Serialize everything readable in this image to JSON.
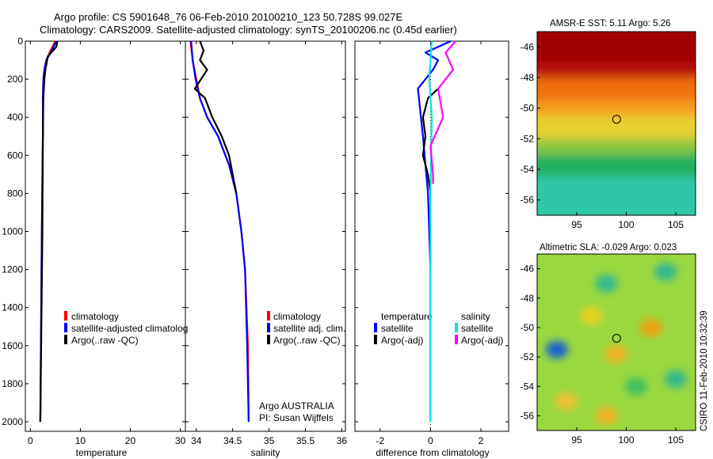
{
  "header": {
    "line1": "Argo profile: CS 5901648_76 06-Feb-2010 20100210_123 50.728S 99.027E",
    "line2": "Climatology: CARS2009. Satellite-adjusted climatology: synTS_20100206.nc (0.45d earlier)"
  },
  "side_label": "CSIRO 11-Feb-2010 10:32:39",
  "colors": {
    "climatology": "#ff0000",
    "satellite": "#0000ff",
    "argo": "#000000",
    "sal_satellite": "#00e5e5",
    "sal_argo": "#ff00ff"
  },
  "chart_data": [
    {
      "type": "line",
      "name": "temperature-profile",
      "xlabel": "temperature",
      "ylabel": "",
      "xlim": [
        -1,
        31
      ],
      "ylim": [
        2050,
        0
      ],
      "xticks": [
        0,
        10,
        20,
        30
      ],
      "yticks": [
        0,
        200,
        400,
        600,
        800,
        1000,
        1200,
        1400,
        1600,
        1800,
        2000
      ],
      "legend": [
        "climatology",
        "satellite-adjusted climatolog",
        "Argo(..raw -QC)"
      ],
      "series": [
        {
          "name": "climatology",
          "color_key": "climatology",
          "x": [
            5.0,
            4.0,
            3.2,
            2.8,
            2.6,
            2.5,
            2.5,
            2.3,
            2.0
          ],
          "y": [
            0,
            50,
            100,
            150,
            200,
            300,
            500,
            1000,
            2000
          ]
        },
        {
          "name": "satellite-adjusted climatology",
          "color_key": "satellite",
          "x": [
            5.2,
            4.3,
            3.2,
            2.8,
            2.6,
            2.5,
            2.5,
            2.3,
            2.0
          ],
          "y": [
            0,
            50,
            100,
            150,
            200,
            300,
            500,
            1000,
            2000
          ]
        },
        {
          "name": "Argo(..raw -QC)",
          "color_key": "argo",
          "x": [
            5.4,
            5.2,
            3.5,
            3.0,
            2.8,
            2.6,
            2.5,
            2.4,
            2.0
          ],
          "y": [
            0,
            30,
            80,
            150,
            200,
            300,
            500,
            1000,
            2000
          ]
        }
      ]
    },
    {
      "type": "line",
      "name": "salinity-profile",
      "xlabel": "salinity",
      "ylabel": "",
      "xlim": [
        33.85,
        36.05
      ],
      "ylim": [
        2050,
        0
      ],
      "xticks": [
        34,
        34.5,
        35,
        35.5,
        36
      ],
      "legend": [
        "climatology",
        "satellite adj. clim.",
        "Argo(..raw -QC)"
      ],
      "annotations": [
        "Argo AUSTRALIA",
        "PI: Susan Wijffels"
      ],
      "series": [
        {
          "name": "climatology",
          "color_key": "climatology",
          "x": [
            33.92,
            33.95,
            34.0,
            34.05,
            34.15,
            34.3,
            34.45,
            34.55,
            34.62,
            34.67,
            34.71,
            34.72
          ],
          "y": [
            0,
            100,
            200,
            300,
            400,
            500,
            650,
            800,
            1000,
            1200,
            1600,
            2000
          ]
        },
        {
          "name": "satellite adj. clim.",
          "color_key": "satellite",
          "x": [
            33.93,
            33.95,
            33.99,
            34.05,
            34.15,
            34.3,
            34.45,
            34.55,
            34.62,
            34.67,
            34.7,
            34.72
          ],
          "y": [
            0,
            100,
            200,
            300,
            400,
            500,
            650,
            800,
            1000,
            1200,
            1600,
            2000
          ]
        },
        {
          "name": "Argo(..raw -QC)",
          "color_key": "argo",
          "x": [
            34.05,
            34.1,
            34.05,
            34.15,
            33.98,
            34.12,
            34.22,
            34.35,
            34.45,
            34.5,
            34.55
          ],
          "y": [
            0,
            50,
            100,
            150,
            250,
            300,
            400,
            500,
            600,
            700,
            800
          ]
        }
      ]
    },
    {
      "type": "line",
      "name": "difference-profile",
      "xlabel": "difference from climatology",
      "ylabel": "",
      "xlim": [
        -3,
        3.1
      ],
      "ylim": [
        2050,
        0
      ],
      "xticks": [
        -2,
        0,
        2
      ],
      "legend_titles": [
        "temperature",
        "salinity"
      ],
      "legend": [
        "satellite",
        "Argo(-adj)",
        "satellite",
        "Argo(-adj)"
      ],
      "series": [
        {
          "name": "temperature satellite",
          "color_key": "satellite",
          "x": [
            0.8,
            0.3,
            -0.2,
            0.3,
            0.1,
            -0.5,
            -0.3,
            -0.1,
            0.0,
            0.0
          ],
          "y": [
            0,
            30,
            60,
            100,
            150,
            250,
            500,
            800,
            1200,
            2000
          ]
        },
        {
          "name": "temperature Argo(-adj)",
          "color_key": "argo",
          "x": [
            0.3,
            -0.1,
            -0.3,
            -0.2,
            -0.3,
            -0.1,
            0.0,
            0.0
          ],
          "y": [
            250,
            300,
            400,
            500,
            600,
            700,
            800,
            900
          ]
        },
        {
          "name": "salinity satellite",
          "color_key": "sal_satellite",
          "x": [
            0.05,
            0.0,
            -0.05,
            0.05,
            0.0,
            0.0,
            0.0
          ],
          "y": [
            0,
            100,
            200,
            400,
            800,
            1200,
            2000
          ]
        },
        {
          "name": "salinity Argo(-adj)",
          "color_key": "sal_argo",
          "x": [
            1.0,
            0.6,
            0.9,
            0.3,
            0.5,
            0.0,
            0.1,
            0.1
          ],
          "y": [
            0,
            60,
            150,
            250,
            400,
            550,
            700,
            750
          ]
        }
      ]
    },
    {
      "type": "heatmap",
      "name": "sst-map",
      "title": "AMSR-E SST: 5.11 Argo: 5.26",
      "xticks": [
        95,
        100,
        105
      ],
      "yticks": [
        -46,
        -48,
        -50,
        -52,
        -54,
        -56
      ],
      "xlim": [
        91,
        107
      ],
      "ylim": [
        -57,
        -45
      ],
      "marker": {
        "lon": 99.027,
        "lat": -50.728
      },
      "bands": [
        {
          "lat": -45,
          "color": "#a00000"
        },
        {
          "lat": -47,
          "color": "#b81010"
        },
        {
          "lat": -48,
          "color": "#f07010"
        },
        {
          "lat": -49.5,
          "color": "#f5a020"
        },
        {
          "lat": -50.5,
          "color": "#e8d030"
        },
        {
          "lat": -52,
          "color": "#8cc840"
        },
        {
          "lat": -53,
          "color": "#20b060"
        },
        {
          "lat": -54.5,
          "color": "#2ec8a8"
        },
        {
          "lat": -57,
          "color": "#30c8a0"
        }
      ]
    },
    {
      "type": "heatmap",
      "name": "sla-map",
      "title": "Altimetric SLA: -0.029 Argo: 0.023",
      "xticks": [
        95,
        100,
        105
      ],
      "yticks": [
        -46,
        -48,
        -50,
        -52,
        -54,
        -56
      ],
      "xlim": [
        91,
        107
      ],
      "ylim": [
        -57,
        -45
      ],
      "marker": {
        "lon": 99.027,
        "lat": -50.728
      },
      "base_color": "#9ad840",
      "blobs": [
        {
          "lon": 93,
          "lat": -51.5,
          "color": "#1860d0"
        },
        {
          "lon": 98,
          "lat": -47,
          "color": "#30b890"
        },
        {
          "lon": 104,
          "lat": -46.2,
          "color": "#30b890"
        },
        {
          "lon": 96.5,
          "lat": -49.2,
          "color": "#e8d020"
        },
        {
          "lon": 102.5,
          "lat": -50,
          "color": "#f0a010"
        },
        {
          "lon": 99,
          "lat": -51.8,
          "color": "#f0b020"
        },
        {
          "lon": 94,
          "lat": -55,
          "color": "#f0c030"
        },
        {
          "lon": 98,
          "lat": -56,
          "color": "#f0b020"
        },
        {
          "lon": 105,
          "lat": -53.5,
          "color": "#30b890"
        },
        {
          "lon": 101,
          "lat": -54,
          "color": "#40c060"
        }
      ]
    }
  ]
}
